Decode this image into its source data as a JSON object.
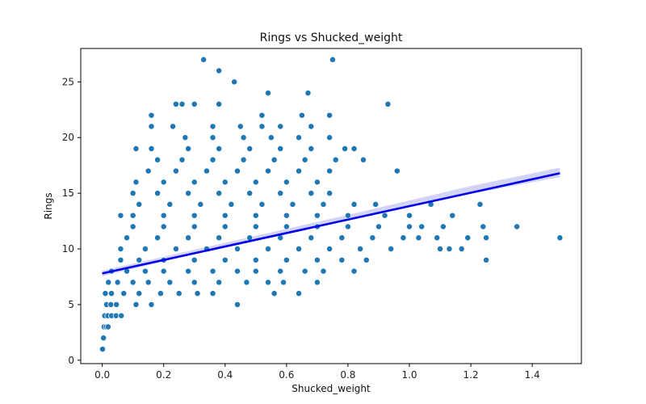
{
  "chart_data": {
    "type": "scatter",
    "title": "Rings vs Shucked_weight",
    "xlabel": "Shucked_weight",
    "ylabel": "Rings",
    "xlim": [
      -0.07,
      1.56
    ],
    "ylim": [
      -0.3,
      28.0
    ],
    "xticks": [
      0.0,
      0.2,
      0.4,
      0.6,
      0.8,
      1.0,
      1.2,
      1.4
    ],
    "xtick_labels": [
      "0.0",
      "0.2",
      "0.4",
      "0.6",
      "0.8",
      "1.0",
      "1.2",
      "1.4"
    ],
    "yticks": [
      0,
      5,
      10,
      15,
      20,
      25
    ],
    "ytick_labels": [
      "0",
      "5",
      "10",
      "15",
      "20",
      "25"
    ],
    "grid": false,
    "colors": {
      "points": "#1f77b4",
      "regression_line": "#0000ee",
      "confidence_band": "#c8c8f5"
    },
    "regression": {
      "x": [
        0.0,
        1.49
      ],
      "y": [
        7.8,
        16.8
      ]
    },
    "confidence_band": {
      "x": [
        0.0,
        0.4,
        0.8,
        1.2,
        1.49
      ],
      "lower": [
        7.55,
        10.2,
        12.65,
        14.95,
        16.45
      ],
      "upper": [
        8.05,
        10.55,
        13.05,
        15.65,
        17.3
      ]
    },
    "points": [
      [
        0.001,
        1
      ],
      [
        0.004,
        2
      ],
      [
        0.006,
        3
      ],
      [
        0.013,
        3
      ],
      [
        0.019,
        3
      ],
      [
        0.008,
        4
      ],
      [
        0.018,
        4
      ],
      [
        0.03,
        4
      ],
      [
        0.045,
        4
      ],
      [
        0.062,
        4
      ],
      [
        0.014,
        5
      ],
      [
        0.028,
        5
      ],
      [
        0.046,
        5
      ],
      [
        0.11,
        5
      ],
      [
        0.16,
        5
      ],
      [
        0.44,
        5
      ],
      [
        0.01,
        6
      ],
      [
        0.03,
        6
      ],
      [
        0.07,
        6
      ],
      [
        0.12,
        6
      ],
      [
        0.19,
        6
      ],
      [
        0.25,
        6
      ],
      [
        0.31,
        6
      ],
      [
        0.36,
        6
      ],
      [
        0.56,
        6
      ],
      [
        0.64,
        6
      ],
      [
        0.02,
        7
      ],
      [
        0.05,
        7
      ],
      [
        0.1,
        7
      ],
      [
        0.15,
        7
      ],
      [
        0.22,
        7
      ],
      [
        0.3,
        7
      ],
      [
        0.38,
        7
      ],
      [
        0.47,
        7
      ],
      [
        0.54,
        7
      ],
      [
        0.59,
        7
      ],
      [
        0.7,
        7
      ],
      [
        0.03,
        8
      ],
      [
        0.08,
        8
      ],
      [
        0.14,
        8
      ],
      [
        0.2,
        8
      ],
      [
        0.28,
        8
      ],
      [
        0.36,
        8
      ],
      [
        0.44,
        8
      ],
      [
        0.5,
        8
      ],
      [
        0.58,
        8
      ],
      [
        0.66,
        8
      ],
      [
        0.72,
        8
      ],
      [
        0.82,
        8
      ],
      [
        0.06,
        9
      ],
      [
        0.12,
        9
      ],
      [
        0.2,
        9
      ],
      [
        0.3,
        9
      ],
      [
        0.4,
        9
      ],
      [
        0.5,
        9
      ],
      [
        0.6,
        9
      ],
      [
        0.7,
        9
      ],
      [
        0.78,
        9
      ],
      [
        0.86,
        9
      ],
      [
        1.25,
        9
      ],
      [
        0.06,
        10
      ],
      [
        0.14,
        10
      ],
      [
        0.24,
        10
      ],
      [
        0.34,
        10
      ],
      [
        0.44,
        10
      ],
      [
        0.54,
        10
      ],
      [
        0.64,
        10
      ],
      [
        0.74,
        10
      ],
      [
        0.84,
        10
      ],
      [
        0.94,
        10
      ],
      [
        1.1,
        10
      ],
      [
        1.13,
        10
      ],
      [
        1.17,
        10
      ],
      [
        0.08,
        11
      ],
      [
        0.18,
        11
      ],
      [
        0.28,
        11
      ],
      [
        0.38,
        11
      ],
      [
        0.48,
        11
      ],
      [
        0.58,
        11
      ],
      [
        0.68,
        11
      ],
      [
        0.78,
        11
      ],
      [
        0.88,
        11
      ],
      [
        0.98,
        11
      ],
      [
        1.03,
        11
      ],
      [
        1.09,
        11
      ],
      [
        1.19,
        11
      ],
      [
        1.25,
        11
      ],
      [
        1.49,
        11
      ],
      [
        0.1,
        12
      ],
      [
        0.2,
        12
      ],
      [
        0.3,
        12
      ],
      [
        0.4,
        12
      ],
      [
        0.5,
        12
      ],
      [
        0.6,
        12
      ],
      [
        0.7,
        12
      ],
      [
        0.8,
        12
      ],
      [
        0.9,
        12
      ],
      [
        1.0,
        12
      ],
      [
        1.04,
        12
      ],
      [
        1.11,
        12
      ],
      [
        1.24,
        12
      ],
      [
        1.35,
        12
      ],
      [
        0.06,
        13
      ],
      [
        0.1,
        13
      ],
      [
        0.2,
        13
      ],
      [
        0.3,
        13
      ],
      [
        0.4,
        13
      ],
      [
        0.5,
        13
      ],
      [
        0.6,
        13
      ],
      [
        0.7,
        13
      ],
      [
        0.8,
        13
      ],
      [
        0.92,
        13
      ],
      [
        1.0,
        13
      ],
      [
        1.14,
        13
      ],
      [
        0.12,
        14
      ],
      [
        0.22,
        14
      ],
      [
        0.32,
        14
      ],
      [
        0.42,
        14
      ],
      [
        0.52,
        14
      ],
      [
        0.62,
        14
      ],
      [
        0.72,
        14
      ],
      [
        0.82,
        14
      ],
      [
        0.89,
        14
      ],
      [
        1.07,
        14
      ],
      [
        1.23,
        14
      ],
      [
        0.1,
        15
      ],
      [
        0.18,
        15
      ],
      [
        0.28,
        15
      ],
      [
        0.38,
        15
      ],
      [
        0.48,
        15
      ],
      [
        0.58,
        15
      ],
      [
        0.68,
        15
      ],
      [
        0.74,
        15
      ],
      [
        0.11,
        16
      ],
      [
        0.2,
        16
      ],
      [
        0.3,
        16
      ],
      [
        0.4,
        16
      ],
      [
        0.5,
        16
      ],
      [
        0.6,
        16
      ],
      [
        0.7,
        16
      ],
      [
        0.15,
        17
      ],
      [
        0.24,
        17
      ],
      [
        0.34,
        17
      ],
      [
        0.44,
        17
      ],
      [
        0.54,
        17
      ],
      [
        0.64,
        17
      ],
      [
        0.74,
        17
      ],
      [
        0.96,
        17
      ],
      [
        0.18,
        18
      ],
      [
        0.26,
        18
      ],
      [
        0.36,
        18
      ],
      [
        0.46,
        18
      ],
      [
        0.56,
        18
      ],
      [
        0.66,
        18
      ],
      [
        0.76,
        18
      ],
      [
        0.85,
        18
      ],
      [
        0.16,
        19
      ],
      [
        0.11,
        19
      ],
      [
        0.28,
        19
      ],
      [
        0.38,
        19
      ],
      [
        0.48,
        19
      ],
      [
        0.58,
        19
      ],
      [
        0.68,
        19
      ],
      [
        0.79,
        19
      ],
      [
        0.82,
        19
      ],
      [
        0.27,
        20
      ],
      [
        0.36,
        20
      ],
      [
        0.46,
        20
      ],
      [
        0.55,
        20
      ],
      [
        0.64,
        20
      ],
      [
        0.74,
        20
      ],
      [
        0.16,
        21
      ],
      [
        0.23,
        21
      ],
      [
        0.36,
        21
      ],
      [
        0.45,
        21
      ],
      [
        0.52,
        21
      ],
      [
        0.58,
        21
      ],
      [
        0.68,
        21
      ],
      [
        0.16,
        22
      ],
      [
        0.52,
        22
      ],
      [
        0.65,
        22
      ],
      [
        0.74,
        22
      ],
      [
        0.24,
        23
      ],
      [
        0.26,
        23
      ],
      [
        0.3,
        23
      ],
      [
        0.38,
        23
      ],
      [
        0.93,
        23
      ],
      [
        0.54,
        24
      ],
      [
        0.67,
        24
      ],
      [
        0.43,
        25
      ],
      [
        0.38,
        26
      ],
      [
        0.33,
        27
      ],
      [
        0.75,
        27
      ]
    ]
  }
}
